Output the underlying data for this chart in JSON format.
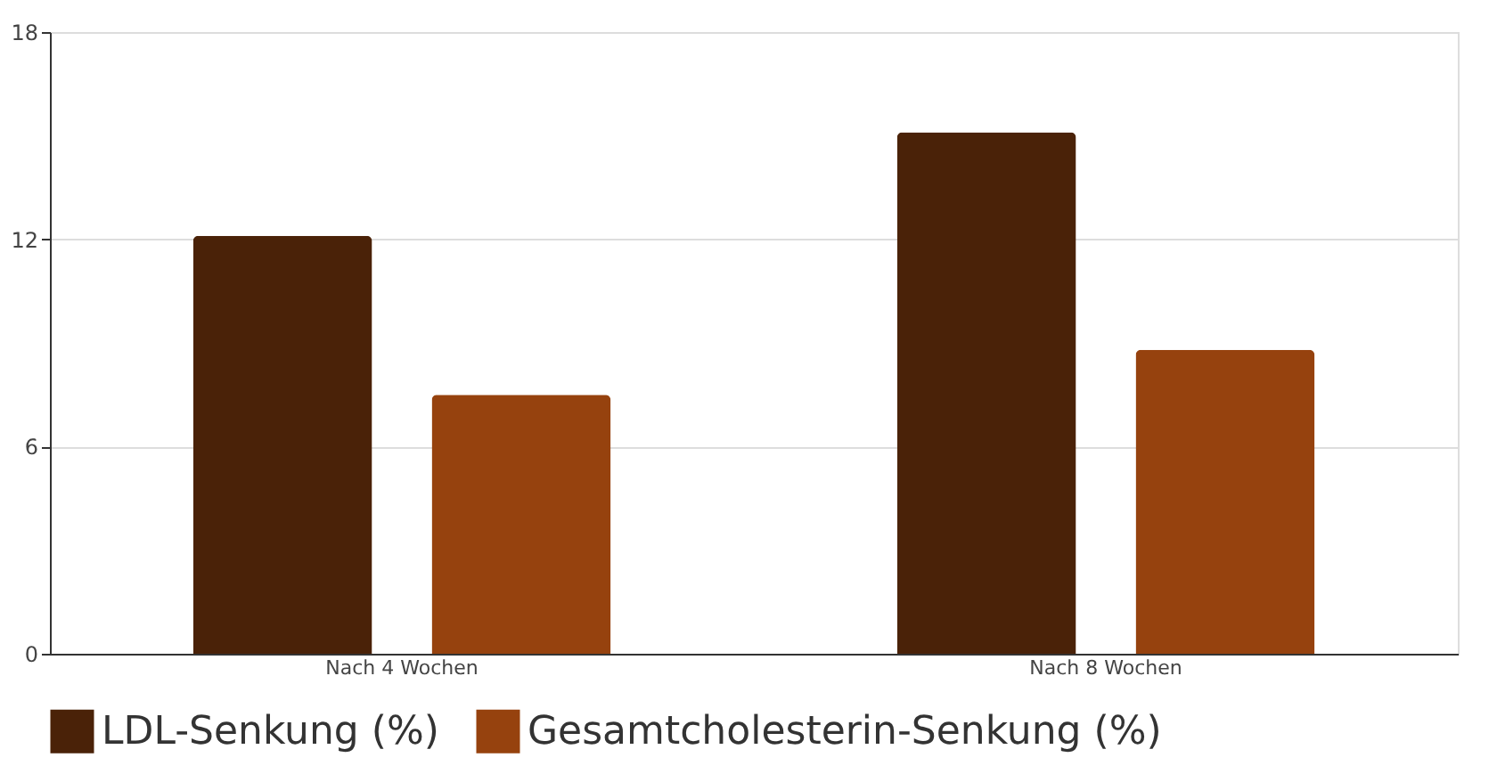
{
  "chart_data": {
    "type": "bar",
    "categories": [
      "Nach 4 Wochen",
      "Nach 8 Wochen"
    ],
    "series": [
      {
        "name": "LDL-Senkung (%)",
        "color": "#4a2208",
        "values": [
          12.1,
          15.1
        ]
      },
      {
        "name": "Gesamtcholesterin-Senkung (%)",
        "color": "#96420e",
        "values": [
          7.5,
          8.8
        ]
      }
    ],
    "ylim": [
      0,
      18
    ],
    "yticks": [
      0,
      6,
      12,
      18
    ],
    "grid": "y",
    "legend": "bottom"
  }
}
